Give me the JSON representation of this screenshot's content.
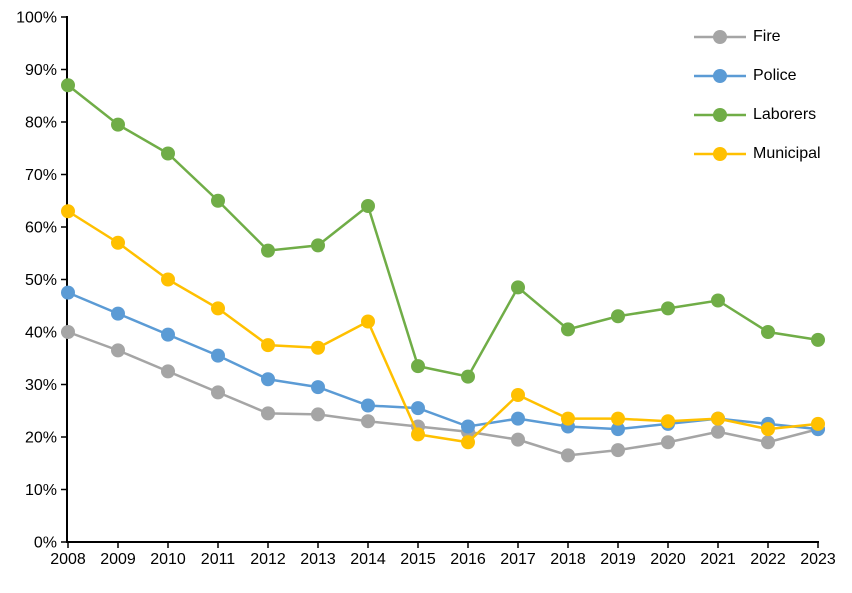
{
  "chart_data": {
    "type": "line",
    "title": "",
    "xlabel": "",
    "ylabel": "",
    "background_color": "#FFFFFF",
    "axis_color": "#000000",
    "grid": false,
    "legend_position": "top-right",
    "x_categories": [
      "2008",
      "2009",
      "2010",
      "2011",
      "2012",
      "2013",
      "2014",
      "2015",
      "2016",
      "2017",
      "2018",
      "2019",
      "2020",
      "2021",
      "2022",
      "2023"
    ],
    "y_axis": {
      "min": 0,
      "max": 100,
      "step": 10,
      "unit": "%",
      "tick_labels": [
        "0%",
        "10%",
        "20%",
        "30%",
        "40%",
        "50%",
        "60%",
        "70%",
        "80%",
        "90%",
        "100%"
      ]
    },
    "series": [
      {
        "name": "Fire",
        "color": "#A5A5A5",
        "values": [
          40,
          36.5,
          32.5,
          28.5,
          24.5,
          24.3,
          23,
          22,
          21,
          19.5,
          16.5,
          17.5,
          19,
          21,
          19,
          21.5
        ]
      },
      {
        "name": "Police",
        "color": "#5B9BD5",
        "values": [
          47.5,
          43.5,
          39.5,
          35.5,
          31,
          29.5,
          26,
          25.5,
          22,
          23.5,
          22,
          21.5,
          22.5,
          23.5,
          22.5,
          21.5
        ]
      },
      {
        "name": "Laborers",
        "color": "#70AD47",
        "values": [
          87,
          79.5,
          74,
          65,
          55.5,
          56.5,
          64,
          33.5,
          31.5,
          48.5,
          40.5,
          43,
          44.5,
          46,
          40,
          38.5
        ]
      },
      {
        "name": "Municipal",
        "color": "#FFC000",
        "values": [
          63,
          57,
          50,
          44.5,
          37.5,
          37,
          42,
          20.5,
          19,
          28,
          23.5,
          23.5,
          23,
          23.5,
          21.5,
          22.5
        ]
      }
    ]
  }
}
